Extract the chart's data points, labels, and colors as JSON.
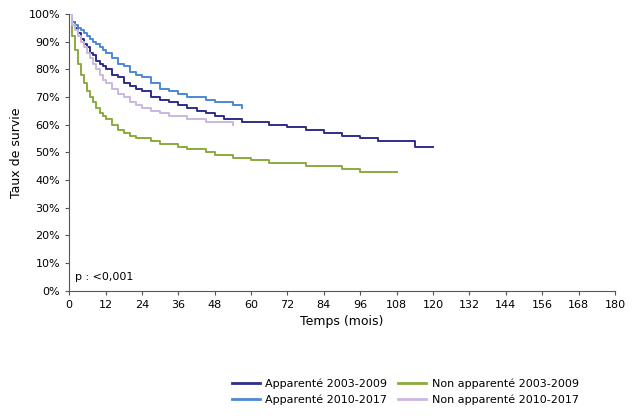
{
  "title": "",
  "xlabel": "Temps (mois)",
  "ylabel": "Taux de survie",
  "xlim": [
    0,
    180
  ],
  "ylim": [
    0,
    1.0
  ],
  "xticks": [
    0,
    12,
    24,
    36,
    48,
    60,
    72,
    84,
    96,
    108,
    120,
    132,
    144,
    156,
    168,
    180
  ],
  "yticks": [
    0.0,
    0.1,
    0.2,
    0.3,
    0.4,
    0.5,
    0.6,
    0.7,
    0.8,
    0.9,
    1.0
  ],
  "ytick_labels": [
    "0%",
    "10%",
    "20%",
    "30%",
    "40%",
    "50%",
    "60%",
    "70%",
    "80%",
    "90%",
    "100%"
  ],
  "p_label": "p : <0,001",
  "background_color": "#ffffff",
  "series": [
    {
      "label": "Apparenté 2003-2009",
      "color": "#2e2e8b",
      "linewidth": 1.4,
      "x": [
        0,
        1,
        2,
        3,
        4,
        5,
        6,
        7,
        8,
        9,
        10,
        11,
        12,
        14,
        16,
        18,
        20,
        22,
        24,
        27,
        30,
        33,
        36,
        39,
        42,
        45,
        48,
        51,
        54,
        57,
        60,
        66,
        72,
        78,
        84,
        90,
        96,
        102,
        108,
        114,
        120
      ],
      "y": [
        1.0,
        0.97,
        0.95,
        0.93,
        0.91,
        0.89,
        0.88,
        0.86,
        0.85,
        0.83,
        0.82,
        0.81,
        0.8,
        0.78,
        0.77,
        0.75,
        0.74,
        0.73,
        0.72,
        0.7,
        0.69,
        0.68,
        0.67,
        0.66,
        0.65,
        0.64,
        0.63,
        0.62,
        0.62,
        0.61,
        0.61,
        0.6,
        0.59,
        0.58,
        0.57,
        0.56,
        0.55,
        0.54,
        0.54,
        0.52,
        0.52
      ]
    },
    {
      "label": "Apparenté 2010-2017",
      "color": "#4b89d4",
      "linewidth": 1.4,
      "x": [
        0,
        1,
        2,
        3,
        4,
        5,
        6,
        7,
        8,
        9,
        10,
        11,
        12,
        14,
        16,
        18,
        20,
        22,
        24,
        27,
        30,
        33,
        36,
        39,
        42,
        45,
        48,
        51,
        54,
        57
      ],
      "y": [
        1.0,
        0.97,
        0.96,
        0.95,
        0.94,
        0.93,
        0.92,
        0.91,
        0.9,
        0.89,
        0.88,
        0.87,
        0.86,
        0.84,
        0.82,
        0.81,
        0.79,
        0.78,
        0.77,
        0.75,
        0.73,
        0.72,
        0.71,
        0.7,
        0.7,
        0.69,
        0.68,
        0.68,
        0.67,
        0.66
      ]
    },
    {
      "label": "Non apparenté 2003-2009",
      "color": "#8aaa3c",
      "linewidth": 1.4,
      "x": [
        0,
        1,
        2,
        3,
        4,
        5,
        6,
        7,
        8,
        9,
        10,
        11,
        12,
        14,
        16,
        18,
        20,
        22,
        24,
        27,
        30,
        33,
        36,
        39,
        42,
        45,
        48,
        54,
        60,
        66,
        72,
        78,
        84,
        90,
        96,
        102,
        108
      ],
      "y": [
        1.0,
        0.92,
        0.87,
        0.82,
        0.78,
        0.75,
        0.72,
        0.7,
        0.68,
        0.66,
        0.64,
        0.63,
        0.62,
        0.6,
        0.58,
        0.57,
        0.56,
        0.55,
        0.55,
        0.54,
        0.53,
        0.53,
        0.52,
        0.51,
        0.51,
        0.5,
        0.49,
        0.48,
        0.47,
        0.46,
        0.46,
        0.45,
        0.45,
        0.44,
        0.43,
        0.43,
        0.43
      ]
    },
    {
      "label": "Non apparenté 2010-2017",
      "color": "#c9b8e0",
      "linewidth": 1.4,
      "x": [
        0,
        1,
        2,
        3,
        4,
        5,
        6,
        7,
        8,
        9,
        10,
        11,
        12,
        14,
        16,
        18,
        20,
        22,
        24,
        27,
        30,
        33,
        36,
        39,
        42,
        45,
        48,
        51,
        54
      ],
      "y": [
        1.0,
        0.96,
        0.94,
        0.92,
        0.9,
        0.88,
        0.86,
        0.84,
        0.82,
        0.8,
        0.78,
        0.76,
        0.75,
        0.73,
        0.71,
        0.7,
        0.68,
        0.67,
        0.66,
        0.65,
        0.64,
        0.63,
        0.63,
        0.62,
        0.62,
        0.61,
        0.61,
        0.61,
        0.6
      ]
    }
  ],
  "legend": {
    "entries": [
      {
        "label": "Apparenté 2003-2009",
        "color": "#2e2e8b"
      },
      {
        "label": "Apparenté 2010-2017",
        "color": "#4b89d4"
      },
      {
        "label": "Non apparenté 2003-2009",
        "color": "#8aaa3c"
      },
      {
        "label": "Non apparenté 2010-2017",
        "color": "#c9b8e0"
      }
    ],
    "ncol": 2,
    "fontsize": 8
  }
}
